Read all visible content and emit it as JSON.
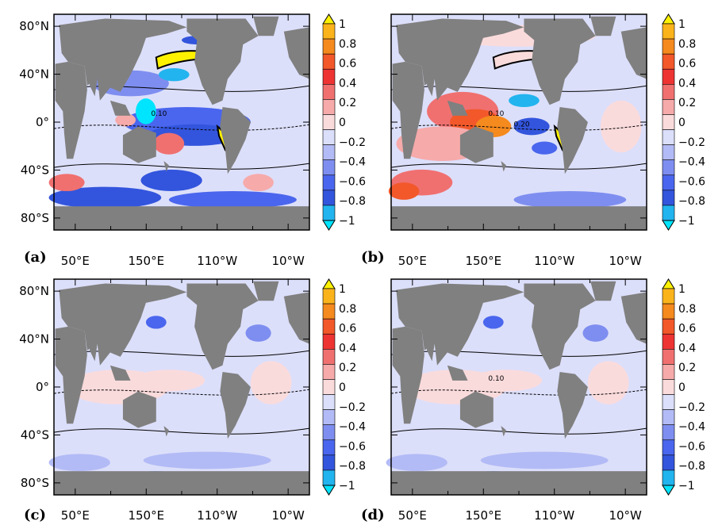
{
  "chart_data": [
    {
      "type": "heatmap",
      "panel_label": "(a)",
      "x_ticks": [
        "50°E",
        "150°E",
        "110°W",
        "10°W"
      ],
      "y_ticks": [
        "80°N",
        "40°N",
        "0°",
        "40°S",
        "80°S"
      ],
      "colorbar_ticks": [
        "1",
        "0.8",
        "0.6",
        "0.4",
        "0.2",
        "0",
        "−0.2",
        "−0.4",
        "−0.6",
        "−0.8",
        "−1"
      ],
      "colorbar_range": [
        -1,
        1
      ],
      "contour_labels": [
        "0.10"
      ],
      "pattern": "strong"
    },
    {
      "type": "heatmap",
      "panel_label": "(b)",
      "x_ticks": [
        "50°E",
        "150°E",
        "110°W",
        "10°W"
      ],
      "y_ticks": [],
      "colorbar_ticks": [
        "1",
        "0.8",
        "0.6",
        "0.4",
        "0.2",
        "0",
        "−0.2",
        "−0.4",
        "−0.6",
        "−0.8",
        "−1"
      ],
      "colorbar_range": [
        -1,
        1
      ],
      "contour_labels": [
        "0.10",
        "0.20"
      ],
      "pattern": "strong-positive"
    },
    {
      "type": "heatmap",
      "panel_label": "(c)",
      "x_ticks": [
        "50°E",
        "150°E",
        "110°W",
        "10°W"
      ],
      "y_ticks": [
        "80°N",
        "40°N",
        "0°",
        "40°S",
        "80°S"
      ],
      "colorbar_ticks": [
        "1",
        "0.8",
        "0.6",
        "0.4",
        "0.2",
        "0",
        "−0.2",
        "−0.4",
        "−0.6",
        "−0.8",
        "−1"
      ],
      "colorbar_range": [
        -1,
        1
      ],
      "contour_labels": [],
      "pattern": "weak"
    },
    {
      "type": "heatmap",
      "panel_label": "(d)",
      "x_ticks": [
        "50°E",
        "150°E",
        "110°W",
        "10°W"
      ],
      "y_ticks": [],
      "colorbar_ticks": [
        "1",
        "0.8",
        "0.6",
        "0.4",
        "0.2",
        "0",
        "−0.2",
        "−0.4",
        "−0.6",
        "−0.8",
        "−1"
      ],
      "colorbar_range": [
        -1,
        1
      ],
      "contour_labels": [
        "0.10"
      ],
      "pattern": "weak"
    }
  ],
  "colors": {
    "land": "#808080",
    "colorbar": [
      "#00e5ff",
      "#22b4ee",
      "#3355dd",
      "#4a66ee",
      "#7e8ef0",
      "#b3bbf6",
      "#dcdffa",
      "#fadbdc",
      "#f6aaaa",
      "#f07070",
      "#ee3333",
      "#f2582a",
      "#f58a1e",
      "#fbb31c",
      "#fff200"
    ],
    "ocean_neg": "#dcdffa",
    "ocean_pos": "#fadbdc"
  }
}
